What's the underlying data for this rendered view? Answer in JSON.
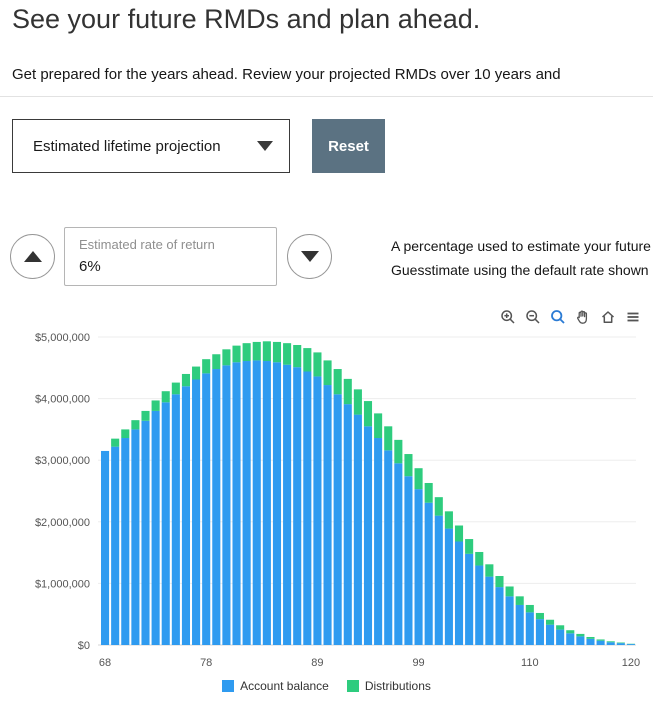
{
  "page": {
    "title": "See your future RMDs and plan ahead.",
    "subtitle": "Get prepared for the years ahead. Review your projected RMDs over 10 years and"
  },
  "controls": {
    "projection_dropdown": {
      "value": "Estimated lifetime projection"
    },
    "reset_label": "Reset"
  },
  "rate_control": {
    "label": "Estimated rate of return",
    "value": "6%",
    "help_line1": "A percentage used to estimate your future",
    "help_line2": "Guesstimate using the default rate shown"
  },
  "modebar": {
    "icons": [
      "zoom-in-icon",
      "zoom-out-icon",
      "box-zoom-icon",
      "pan-icon",
      "home-icon",
      "menu-icon"
    ],
    "active_icon": "box-zoom-icon"
  },
  "colors": {
    "reset_button_bg": "#5b7282",
    "active_tool": "#2b7bd4",
    "account_balance_blue": "#2f9bf0",
    "distributions_green": "#2ecc7e"
  },
  "chart_data": {
    "type": "bar",
    "stacked": true,
    "title": "",
    "xlabel": "",
    "ylabel": "",
    "ylim": [
      0,
      5150000
    ],
    "legend_position": "bottom",
    "x": [
      68,
      69,
      70,
      71,
      72,
      73,
      74,
      75,
      76,
      77,
      78,
      79,
      80,
      81,
      82,
      83,
      84,
      85,
      86,
      87,
      88,
      89,
      90,
      91,
      92,
      93,
      94,
      95,
      96,
      97,
      98,
      99,
      100,
      101,
      102,
      103,
      104,
      105,
      106,
      107,
      108,
      109,
      110,
      111,
      112,
      113,
      114,
      115,
      116,
      117,
      118,
      119,
      120
    ],
    "x_tick_values": [
      68,
      78,
      89,
      99,
      110,
      120
    ],
    "y_ticks": {
      "values": [
        0,
        1000000,
        2000000,
        3000000,
        4000000,
        5000000
      ],
      "labels": [
        "$0",
        "$1,000,000",
        "$2,000,000",
        "$3,000,000",
        "$4,000,000",
        "$5,000,000"
      ]
    },
    "series": [
      {
        "name": "Account balance",
        "color": "#2f9bf0",
        "values": [
          3150000,
          3220000,
          3360000,
          3500000,
          3640000,
          3800000,
          3940000,
          4070000,
          4200000,
          4310000,
          4410000,
          4480000,
          4540000,
          4590000,
          4610000,
          4620000,
          4610000,
          4590000,
          4550000,
          4510000,
          4440000,
          4360000,
          4220000,
          4070000,
          3910000,
          3740000,
          3550000,
          3360000,
          3160000,
          2950000,
          2740000,
          2530000,
          2310000,
          2100000,
          1890000,
          1680000,
          1480000,
          1290000,
          1110000,
          940000,
          790000,
          650000,
          530000,
          420000,
          330000,
          250000,
          190000,
          140000,
          100000,
          70000,
          45000,
          30000,
          15000
        ]
      },
      {
        "name": "Distributions",
        "color": "#2ecc7e",
        "values": [
          0,
          130000,
          140000,
          150000,
          160000,
          170000,
          180000,
          190000,
          200000,
          210000,
          230000,
          240000,
          260000,
          270000,
          290000,
          300000,
          320000,
          330000,
          350000,
          360000,
          380000,
          390000,
          400000,
          410000,
          410000,
          410000,
          410000,
          400000,
          390000,
          380000,
          360000,
          340000,
          320000,
          300000,
          280000,
          260000,
          240000,
          220000,
          200000,
          180000,
          160000,
          140000,
          120000,
          100000,
          80000,
          70000,
          50000,
          40000,
          30000,
          20000,
          15000,
          10000,
          5000
        ]
      }
    ]
  }
}
